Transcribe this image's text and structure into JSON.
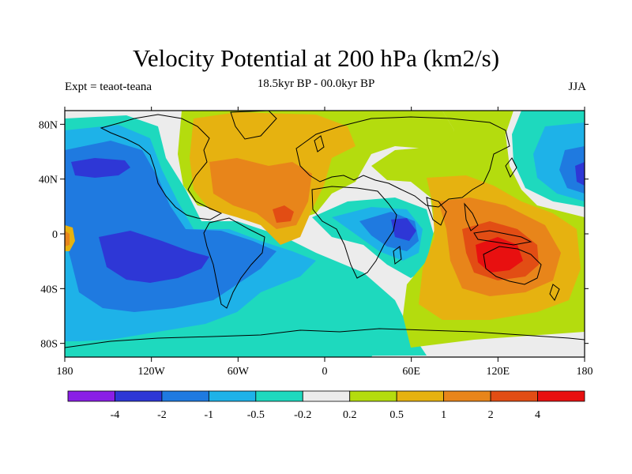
{
  "title": "Velocity Potential at 200 hPa (km2/s)",
  "subtitle": "18.5kyr BP - 00.0kyr BP",
  "left_label": "Expt = teaot-teana",
  "right_label": "JJA",
  "axes": {
    "lat_ticks": [
      "80N",
      "40N",
      "0",
      "40S",
      "80S"
    ],
    "lat_values": [
      80,
      40,
      0,
      -40,
      -80
    ],
    "lon_ticks": [
      "180",
      "120W",
      "60W",
      "0",
      "60E",
      "120E",
      "180"
    ],
    "lon_values": [
      -180,
      -120,
      -60,
      0,
      60,
      120,
      180
    ],
    "lat_range": [
      -90,
      90
    ],
    "lon_range": [
      -180,
      180
    ]
  },
  "colorbar": {
    "labels": [
      "-4",
      "-2",
      "-1",
      "-0.5",
      "-0.2",
      "0.2",
      "0.5",
      "1",
      "2",
      "4"
    ],
    "colors": [
      "#8a1fe6",
      "#2e37d6",
      "#1f7ae0",
      "#1eb2e8",
      "#1ed9be",
      "#ececec",
      "#b4dc0e",
      "#e6b210",
      "#e8851a",
      "#e24d14",
      "#e81010"
    ]
  },
  "colors": {
    "neutral": "#ececec",
    "coast": "#000000"
  }
}
